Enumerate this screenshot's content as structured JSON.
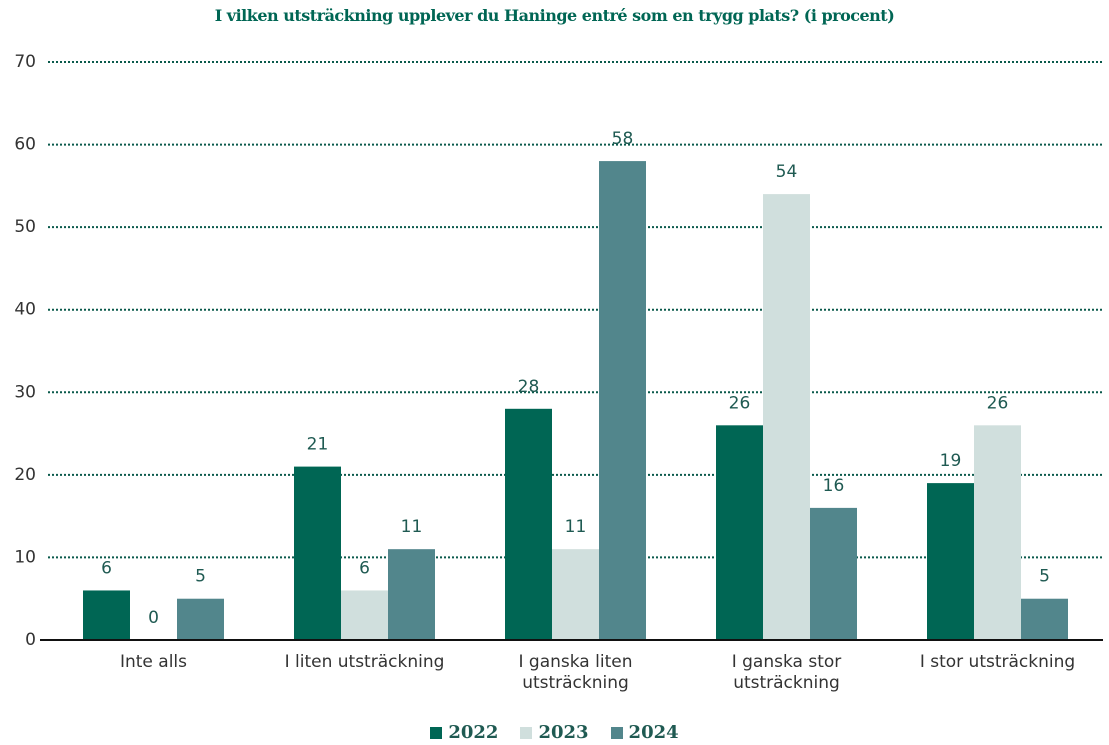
{
  "chart_data": {
    "type": "bar",
    "title": "I vilken utsträckning upplever du Haninge entré som en trygg plats? (i procent)",
    "categories": [
      "Inte alls",
      "I liten utsträckning",
      "I ganska liten utsträckning",
      "I ganska stor utsträckning",
      "I stor utsträckning"
    ],
    "series": [
      {
        "name": "2022",
        "color": "#006654",
        "values": [
          6,
          21,
          28,
          26,
          19
        ]
      },
      {
        "name": "2023",
        "color": "#d0dfdd",
        "values": [
          0,
          6,
          11,
          54,
          26
        ]
      },
      {
        "name": "2024",
        "color": "#52868c",
        "values": [
          5,
          11,
          58,
          16,
          5
        ]
      }
    ],
    "ylim": [
      0,
      70
    ],
    "yticks": [
      0,
      10,
      20,
      30,
      40,
      50,
      60,
      70
    ],
    "grid": true
  }
}
